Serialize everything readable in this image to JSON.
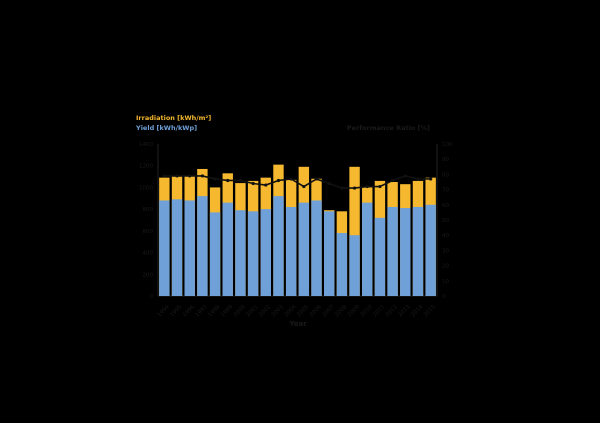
{
  "chart_data": {
    "type": "bar",
    "legend": {
      "irradiation_label": "Irradiation [kWh/m²]",
      "yield_label": "Yield [kWh/kWp]",
      "placement": "top-left"
    },
    "right_axis_label": "Performance Ratio [%]",
    "xlabel": "Year",
    "left_ylim": [
      0,
      1400
    ],
    "left_ticks": [
      "0",
      "200",
      "400",
      "600",
      "800",
      "1000",
      "1200",
      "1400"
    ],
    "right_ylim": [
      0,
      100
    ],
    "right_ticks": [
      "0",
      "10",
      "20",
      "30",
      "40",
      "50",
      "60",
      "70",
      "80",
      "90",
      "100"
    ],
    "categories": [
      "1994",
      "1995",
      "1996",
      "1997",
      "1998",
      "1999",
      "2000",
      "2001",
      "2002",
      "2003",
      "2004",
      "2005",
      "2006",
      "2007",
      "2008",
      "2009",
      "2010",
      "2011",
      "2012",
      "2013",
      "2014",
      "2015"
    ],
    "series": [
      {
        "name": "Irradiation [kWh/m²]",
        "kind": "bar",
        "color": "#F5B82E",
        "values": [
          1090,
          1100,
          1110,
          1170,
          1000,
          1130,
          1040,
          1060,
          1090,
          1210,
          1070,
          1190,
          1080,
          790,
          780,
          1190,
          1000,
          1060,
          1050,
          1030,
          1060,
          1090
        ]
      },
      {
        "name": "Yield [kWh/kWp]",
        "kind": "bar",
        "color": "#6FA0D8",
        "values": [
          880,
          890,
          880,
          920,
          770,
          860,
          790,
          780,
          800,
          920,
          820,
          860,
          880,
          780,
          580,
          560,
          860,
          720,
          820,
          810,
          820,
          840
        ]
      },
      {
        "name": "Performance Ratio [%]",
        "kind": "line",
        "axis": "right",
        "color": "#111111",
        "values": [
          79,
          79,
          79,
          79,
          77,
          76,
          76,
          74,
          73,
          76,
          77,
          72,
          77,
          74,
          71,
          71,
          72,
          72,
          76,
          79,
          77,
          77
        ]
      }
    ],
    "grid": false,
    "colors": {
      "background": "#000000",
      "irradiation": "#F5B82E",
      "yield": "#6FA0D8",
      "pr_line": "#111111",
      "axis_text": "#1a1a1a"
    }
  }
}
